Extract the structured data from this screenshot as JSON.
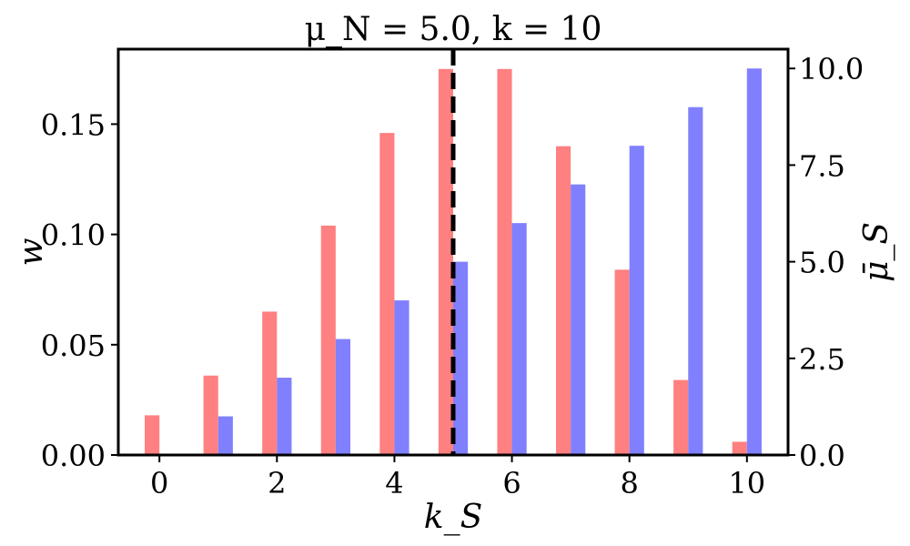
{
  "chart_data": {
    "type": "bar",
    "title": "μ_N = 5.0, k = 10",
    "xlabel": "k_S",
    "ylabel_left": "w",
    "ylabel_right": "μ̄_S",
    "x_ticks": [
      0,
      2,
      4,
      6,
      8,
      10
    ],
    "x_lim": [
      -0.7,
      10.7
    ],
    "y_left_ticks": [
      "0.00",
      "0.05",
      "0.10",
      "0.15"
    ],
    "y_left_lim": [
      0,
      0.184
    ],
    "y_right_ticks": [
      "0.0",
      "2.5",
      "5.0",
      "7.5",
      "10.0"
    ],
    "y_right_lim": [
      0,
      10.5
    ],
    "categories": [
      0,
      1,
      2,
      3,
      4,
      5,
      6,
      7,
      8,
      9,
      10
    ],
    "series": [
      {
        "axis": "left",
        "color": "#ff8080",
        "values": [
          0.018,
          0.036,
          0.065,
          0.104,
          0.146,
          0.175,
          0.175,
          0.14,
          0.084,
          0.034,
          0.006
        ]
      },
      {
        "axis": "right",
        "color": "#8080ff",
        "values": [
          0,
          1,
          2,
          3,
          4,
          5,
          6,
          7,
          8,
          9,
          10
        ]
      }
    ],
    "vline": {
      "x": 5.0,
      "style": "dashed",
      "color": "#000000"
    },
    "grid": false,
    "legend": "none"
  }
}
